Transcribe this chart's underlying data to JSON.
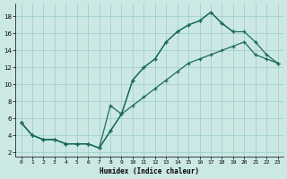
{
  "xlabel": "Humidex (Indice chaleur)",
  "bg_color": "#cce8e4",
  "grid_color": "#99cccc",
  "line_color": "#1a6b5a",
  "xlim": [
    -0.5,
    23.5
  ],
  "ylim": [
    1.5,
    19.5
  ],
  "yticks": [
    2,
    4,
    6,
    8,
    10,
    12,
    14,
    16,
    18
  ],
  "xticks": [
    0,
    1,
    2,
    3,
    4,
    5,
    6,
    7,
    8,
    9,
    10,
    11,
    12,
    13,
    14,
    15,
    16,
    17,
    18,
    19,
    20,
    21,
    22,
    23
  ],
  "series": [
    {
      "x": [
        0,
        1,
        2,
        3,
        4,
        5,
        6,
        7,
        8,
        9,
        10,
        11,
        12,
        13,
        14,
        15,
        16,
        17,
        18,
        19
      ],
      "y": [
        5.5,
        4.0,
        3.5,
        3.5,
        3.0,
        3.0,
        3.0,
        2.5,
        7.5,
        6.5,
        10.5,
        12.0,
        13.0,
        15.0,
        16.2,
        17.0,
        17.5,
        18.5,
        17.2,
        16.2
      ]
    },
    {
      "x": [
        0,
        1,
        2,
        3,
        4,
        5,
        6,
        7,
        8,
        9,
        10,
        11,
        12,
        13,
        14,
        15,
        16,
        17,
        18,
        19,
        20,
        21,
        22,
        23
      ],
      "y": [
        5.5,
        4.0,
        3.5,
        3.5,
        3.0,
        3.0,
        3.0,
        2.5,
        4.5,
        6.5,
        10.5,
        12.0,
        13.0,
        15.0,
        16.2,
        17.0,
        17.5,
        18.5,
        17.2,
        16.2,
        16.2,
        15.0,
        13.5,
        12.5
      ]
    },
    {
      "x": [
        0,
        1,
        2,
        3,
        4,
        5,
        6,
        7,
        8,
        9,
        10,
        11,
        12,
        13,
        14,
        15,
        16,
        17,
        18,
        19,
        20,
        21,
        22,
        23
      ],
      "y": [
        5.5,
        4.0,
        3.5,
        3.5,
        3.0,
        3.0,
        3.0,
        2.5,
        4.5,
        6.5,
        7.5,
        8.5,
        9.5,
        10.5,
        11.5,
        12.5,
        13.0,
        13.5,
        14.0,
        14.5,
        15.0,
        13.5,
        13.0,
        12.5
      ]
    }
  ]
}
